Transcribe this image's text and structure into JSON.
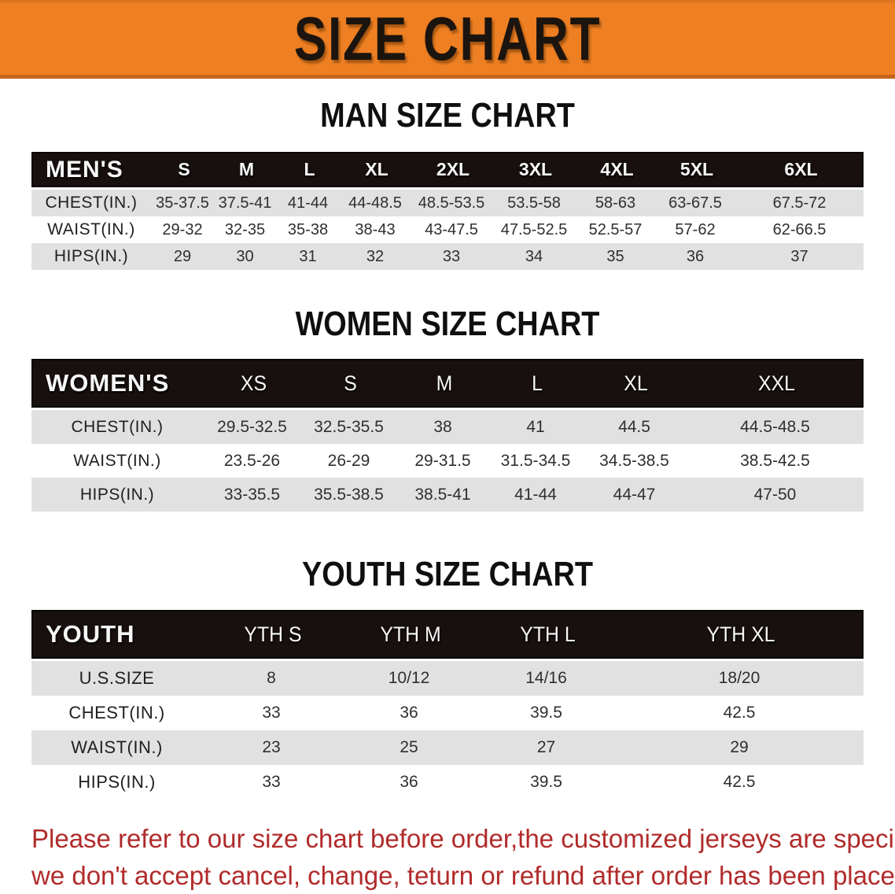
{
  "banner": {
    "title": "SIZE CHART"
  },
  "colors": {
    "banner_orange": "#EE7F22",
    "banner_top_edge": "#DD7420",
    "banner_edge": "#C4661A",
    "header_black": "#18100E",
    "row_gray": "#E1E1E1",
    "note_red": "#B12B2B"
  },
  "sections": [
    {
      "heading": "MAN SIZE CHART",
      "table": {
        "header_label": "MEN'S",
        "columns": [
          "S",
          "M",
          "L",
          "XL",
          "2XL",
          "3XL",
          "4XL",
          "5XL",
          "6XL"
        ],
        "rows": [
          {
            "label": "CHEST(IN.)",
            "values": [
              "35-37.5",
              "37.5-41",
              "41-44",
              "44-48.5",
              "48.5-53.5",
              "53.5-58",
              "58-63",
              "63-67.5",
              "67.5-72"
            ]
          },
          {
            "label": "WAIST(IN.)",
            "values": [
              "29-32",
              "32-35",
              "35-38",
              "38-43",
              "43-47.5",
              "47.5-52.5",
              "52.5-57",
              "57-62",
              "62-66.5"
            ]
          },
          {
            "label": "HIPS(IN.)",
            "values": [
              "29",
              "30",
              "31",
              "32",
              "33",
              "34",
              "35",
              "36",
              "37"
            ]
          }
        ]
      }
    },
    {
      "heading": "WOMEN SIZE CHART",
      "table": {
        "header_label": "WOMEN'S",
        "columns": [
          "XS",
          "S",
          "M",
          "L",
          "XL",
          "XXL"
        ],
        "rows": [
          {
            "label": "CHEST(IN.)",
            "values": [
              "29.5-32.5",
              "32.5-35.5",
              "38",
              "41",
              "44.5",
              "44.5-48.5"
            ]
          },
          {
            "label": "WAIST(IN.)",
            "values": [
              "23.5-26",
              "26-29",
              "29-31.5",
              "31.5-34.5",
              "34.5-38.5",
              "38.5-42.5"
            ]
          },
          {
            "label": "HIPS(IN.)",
            "values": [
              "33-35.5",
              "35.5-38.5",
              "38.5-41",
              "41-44",
              "44-47",
              "47-50"
            ]
          }
        ]
      }
    },
    {
      "heading": "YOUTH SIZE CHART",
      "table": {
        "header_label": "YOUTH",
        "columns": [
          "YTH S",
          "YTH M",
          "YTH L",
          "YTH XL"
        ],
        "rows": [
          {
            "label": "U.S.SIZE",
            "values": [
              "8",
              "10/12",
              "14/16",
              "18/20"
            ]
          },
          {
            "label": "CHEST(IN.)",
            "values": [
              "33",
              "36",
              "39.5",
              "42.5"
            ]
          },
          {
            "label": "WAIST(IN.)",
            "values": [
              "23",
              "25",
              "27",
              "29"
            ]
          },
          {
            "label": "HIPS(IN.)",
            "values": [
              "33",
              "36",
              "39.5",
              "42.5"
            ]
          }
        ]
      }
    }
  ],
  "note": {
    "line1": "Please refer to our size chart before order,the customized jerseys are special products,",
    "line2": "we don't accept cancel, change, teturn or refund after order has been placed!"
  }
}
